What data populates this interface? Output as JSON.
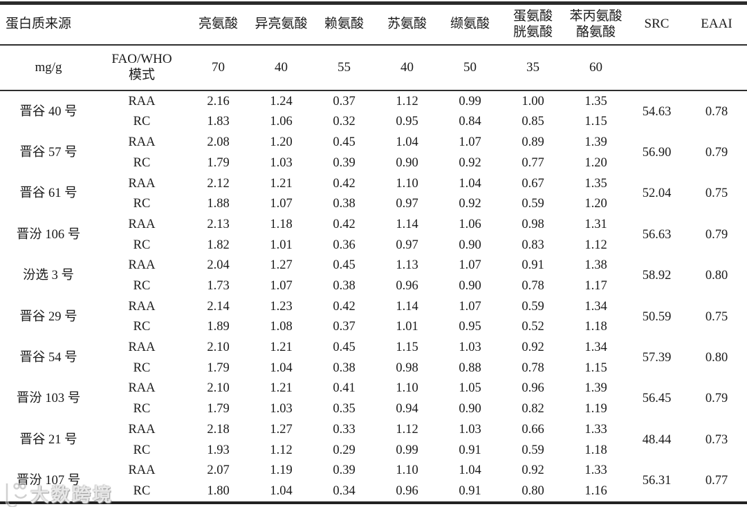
{
  "table": {
    "header_row1": {
      "protein_source": "蛋白质来源",
      "amino_acids": [
        "亮氨酸",
        "异亮氨酸",
        "赖氨酸",
        "苏氨酸",
        "缬氨酸",
        "蛋氨酸\n胱氨酸",
        "苯丙氨酸\n酪氨酸"
      ],
      "src": "SRC",
      "eaai": "EAAI"
    },
    "header_row2": {
      "unit": "mg/g",
      "pattern": "FAO/WHO\n模式",
      "values": [
        "70",
        "40",
        "55",
        "40",
        "50",
        "35",
        "60"
      ]
    },
    "row_labels": {
      "raa": "RAA",
      "rc": "RC"
    },
    "varieties": [
      {
        "name": "晋谷 40 号",
        "raa": [
          "2.16",
          "1.24",
          "0.37",
          "1.12",
          "0.99",
          "1.00",
          "1.35"
        ],
        "rc": [
          "1.83",
          "1.06",
          "0.32",
          "0.95",
          "0.84",
          "0.85",
          "1.15"
        ],
        "src": "54.63",
        "eaai": "0.78"
      },
      {
        "name": "晋谷 57 号",
        "raa": [
          "2.08",
          "1.20",
          "0.45",
          "1.04",
          "1.07",
          "0.89",
          "1.39"
        ],
        "rc": [
          "1.79",
          "1.03",
          "0.39",
          "0.90",
          "0.92",
          "0.77",
          "1.20"
        ],
        "src": "56.90",
        "eaai": "0.79"
      },
      {
        "name": "晋谷 61 号",
        "raa": [
          "2.12",
          "1.21",
          "0.42",
          "1.10",
          "1.04",
          "0.67",
          "1.35"
        ],
        "rc": [
          "1.88",
          "1.07",
          "0.38",
          "0.97",
          "0.92",
          "0.59",
          "1.20"
        ],
        "src": "52.04",
        "eaai": "0.75"
      },
      {
        "name": "晋汾 106 号",
        "raa": [
          "2.13",
          "1.18",
          "0.42",
          "1.14",
          "1.06",
          "0.98",
          "1.31"
        ],
        "rc": [
          "1.82",
          "1.01",
          "0.36",
          "0.97",
          "0.90",
          "0.83",
          "1.12"
        ],
        "src": "56.63",
        "eaai": "0.79"
      },
      {
        "name": "汾选 3 号",
        "raa": [
          "2.04",
          "1.27",
          "0.45",
          "1.13",
          "1.07",
          "0.91",
          "1.38"
        ],
        "rc": [
          "1.73",
          "1.07",
          "0.38",
          "0.96",
          "0.90",
          "0.78",
          "1.17"
        ],
        "src": "58.92",
        "eaai": "0.80"
      },
      {
        "name": "晋谷 29 号",
        "raa": [
          "2.14",
          "1.23",
          "0.42",
          "1.14",
          "1.07",
          "0.59",
          "1.34"
        ],
        "rc": [
          "1.89",
          "1.08",
          "0.37",
          "1.01",
          "0.95",
          "0.52",
          "1.18"
        ],
        "src": "50.59",
        "eaai": "0.75"
      },
      {
        "name": "晋谷 54 号",
        "raa": [
          "2.10",
          "1.21",
          "0.45",
          "1.15",
          "1.03",
          "0.92",
          "1.34"
        ],
        "rc": [
          "1.79",
          "1.04",
          "0.38",
          "0.98",
          "0.88",
          "0.78",
          "1.15"
        ],
        "src": "57.39",
        "eaai": "0.80"
      },
      {
        "name": "晋汾 103 号",
        "raa": [
          "2.10",
          "1.21",
          "0.41",
          "1.10",
          "1.05",
          "0.96",
          "1.39"
        ],
        "rc": [
          "1.79",
          "1.03",
          "0.35",
          "0.94",
          "0.90",
          "0.82",
          "1.19"
        ],
        "src": "56.45",
        "eaai": "0.79"
      },
      {
        "name": "晋谷 21 号",
        "raa": [
          "2.18",
          "1.27",
          "0.33",
          "1.12",
          "1.03",
          "0.66",
          "1.33"
        ],
        "rc": [
          "1.93",
          "1.12",
          "0.29",
          "0.99",
          "0.91",
          "0.59",
          "1.18"
        ],
        "src": "48.44",
        "eaai": "0.73"
      },
      {
        "name": "晋汾 107 号",
        "raa": [
          "2.07",
          "1.19",
          "0.39",
          "1.10",
          "1.04",
          "0.92",
          "1.33"
        ],
        "rc": [
          "1.80",
          "1.04",
          "0.34",
          "0.96",
          "0.91",
          "0.80",
          "1.16"
        ],
        "src": "56.31",
        "eaai": "0.77"
      }
    ]
  },
  "watermark": {
    "text": "大数跨境"
  },
  "colors": {
    "text": "#1a1a1a",
    "rule_thick": "#2b2b2b",
    "rule_thin": "#2e2e2e",
    "watermark": "#c8c8c8"
  }
}
